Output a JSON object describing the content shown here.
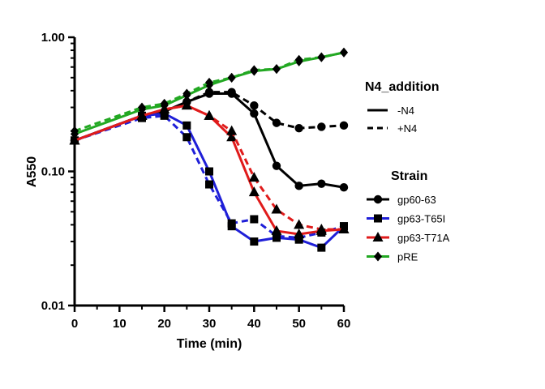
{
  "chart_data": {
    "type": "line",
    "xlabel": "Time (min)",
    "ylabel": "A550",
    "xlim": [
      0,
      60
    ],
    "ylim": [
      0.01,
      1.0
    ],
    "yscale": "log",
    "grid": false,
    "x_ticks": [
      0,
      10,
      20,
      30,
      40,
      50,
      60
    ],
    "x_tick_labels": [
      "0",
      "10",
      "20",
      "30",
      "40",
      "50",
      "60"
    ],
    "y_ticks": [
      0.01,
      0.1,
      1.0
    ],
    "y_tick_labels": [
      "0.01",
      "0.10",
      "1.00"
    ],
    "legend_placement": "right",
    "legends": {
      "line_style": {
        "title": "N4_addition",
        "entries": [
          {
            "label": "-N4",
            "dash": "solid"
          },
          {
            "label": "+N4",
            "dash": "dashed"
          }
        ]
      },
      "strain": {
        "title": "Strain",
        "entries": [
          {
            "label": "gp60-63",
            "color": "#000000",
            "marker": "circle"
          },
          {
            "label": "gp63-T65I",
            "color": "#1f1fd8",
            "marker": "square"
          },
          {
            "label": "gp63-T71A",
            "color": "#e01b1b",
            "marker": "triangle"
          },
          {
            "label": "pRE",
            "color": "#22a822",
            "marker": "diamond"
          }
        ]
      }
    },
    "series": [
      {
        "strain": "gp60-63",
        "n4": "-N4",
        "color": "#000000",
        "marker": "circle",
        "dash": "solid",
        "x": [
          0,
          15,
          20,
          25,
          30,
          35,
          40,
          45,
          50,
          55,
          60
        ],
        "y": [
          0.17,
          0.26,
          0.28,
          0.33,
          0.38,
          0.38,
          0.27,
          0.11,
          0.078,
          0.081,
          0.076
        ]
      },
      {
        "strain": "gp60-63",
        "n4": "+N4",
        "color": "#000000",
        "marker": "circle",
        "dash": "dashed",
        "x": [
          0,
          15,
          20,
          25,
          30,
          35,
          40,
          45,
          50,
          55,
          60
        ],
        "y": [
          0.17,
          0.26,
          0.28,
          0.33,
          0.39,
          0.39,
          0.31,
          0.23,
          0.21,
          0.215,
          0.22
        ]
      },
      {
        "strain": "gp63-T65I",
        "n4": "-N4",
        "color": "#1f1fd8",
        "marker": "square",
        "dash": "solid",
        "x": [
          0,
          15,
          20,
          25,
          30,
          35,
          40,
          45,
          50,
          55,
          60
        ],
        "y": [
          0.17,
          0.26,
          0.27,
          0.22,
          0.1,
          0.039,
          0.03,
          0.032,
          0.031,
          0.027,
          0.039
        ]
      },
      {
        "strain": "gp63-T65I",
        "n4": "+N4",
        "color": "#1f1fd8",
        "marker": "square",
        "dash": "dashed",
        "x": [
          0,
          15,
          20,
          25,
          30,
          35,
          40,
          45,
          50,
          55,
          60
        ],
        "y": [
          0.17,
          0.25,
          0.26,
          0.18,
          0.08,
          0.041,
          0.044,
          0.033,
          0.032,
          0.035,
          0.039
        ]
      },
      {
        "strain": "gp63-T71A",
        "n4": "-N4",
        "color": "#e01b1b",
        "marker": "triangle",
        "dash": "solid",
        "x": [
          0,
          15,
          20,
          25,
          30,
          35,
          40,
          45,
          50,
          55,
          60
        ],
        "y": [
          0.17,
          0.26,
          0.29,
          0.31,
          0.26,
          0.18,
          0.07,
          0.036,
          0.034,
          0.036,
          0.037
        ]
      },
      {
        "strain": "gp63-T71A",
        "n4": "+N4",
        "color": "#e01b1b",
        "marker": "triangle",
        "dash": "dashed",
        "x": [
          0,
          15,
          20,
          25,
          30,
          35,
          40,
          45,
          50,
          55,
          60
        ],
        "y": [
          0.17,
          0.26,
          0.29,
          0.31,
          0.26,
          0.2,
          0.09,
          0.052,
          0.04,
          0.037,
          0.037
        ]
      },
      {
        "strain": "pRE",
        "n4": "-N4",
        "color": "#22a822",
        "marker": "diamond",
        "dash": "solid",
        "x": [
          0,
          15,
          20,
          25,
          30,
          35,
          40,
          45,
          50,
          55,
          60
        ],
        "y": [
          0.19,
          0.29,
          0.31,
          0.37,
          0.44,
          0.5,
          0.56,
          0.58,
          0.66,
          0.71,
          0.77
        ]
      },
      {
        "strain": "pRE",
        "n4": "+N4",
        "color": "#22a822",
        "marker": "diamond",
        "dash": "dashed",
        "x": [
          0,
          15,
          20,
          25,
          30,
          35,
          40,
          45,
          50,
          55,
          60
        ],
        "y": [
          0.2,
          0.3,
          0.32,
          0.38,
          0.46,
          0.5,
          0.57,
          0.58,
          0.68,
          0.71,
          0.77
        ]
      }
    ]
  }
}
